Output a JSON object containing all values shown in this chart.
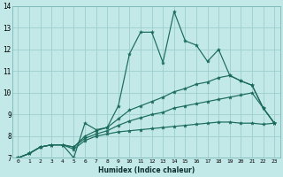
{
  "xlabel": "Humidex (Indice chaleur)",
  "bg_color": "#c2e8e8",
  "grid_color": "#9ecece",
  "line_color": "#1a6b5a",
  "xlim": [
    -0.5,
    23.5
  ],
  "ylim": [
    7,
    14
  ],
  "xticks": [
    0,
    1,
    2,
    3,
    4,
    5,
    6,
    7,
    8,
    9,
    10,
    11,
    12,
    13,
    14,
    15,
    16,
    17,
    18,
    19,
    20,
    21,
    22,
    23
  ],
  "yticks": [
    7,
    8,
    9,
    10,
    11,
    12,
    13,
    14
  ],
  "series": [
    [
      7.0,
      7.2,
      7.5,
      7.6,
      7.6,
      7.0,
      8.6,
      8.3,
      8.4,
      9.4,
      11.8,
      12.8,
      12.8,
      11.4,
      13.75,
      12.4,
      12.2,
      11.45,
      12.0,
      10.8,
      10.55,
      10.35,
      9.3,
      8.6
    ],
    [
      7.0,
      7.2,
      7.5,
      7.6,
      7.6,
      7.5,
      8.0,
      8.25,
      8.4,
      8.8,
      9.2,
      9.4,
      9.6,
      9.8,
      10.05,
      10.2,
      10.4,
      10.5,
      10.7,
      10.8,
      10.55,
      10.35,
      9.3,
      8.6
    ],
    [
      7.0,
      7.2,
      7.5,
      7.6,
      7.6,
      7.5,
      7.9,
      8.1,
      8.25,
      8.5,
      8.7,
      8.85,
      9.0,
      9.1,
      9.3,
      9.4,
      9.5,
      9.6,
      9.7,
      9.8,
      9.9,
      10.0,
      9.3,
      8.6
    ],
    [
      7.0,
      7.2,
      7.5,
      7.6,
      7.6,
      7.4,
      7.8,
      8.0,
      8.1,
      8.2,
      8.25,
      8.3,
      8.35,
      8.4,
      8.45,
      8.5,
      8.55,
      8.6,
      8.65,
      8.65,
      8.6,
      8.6,
      8.55,
      8.6
    ]
  ]
}
